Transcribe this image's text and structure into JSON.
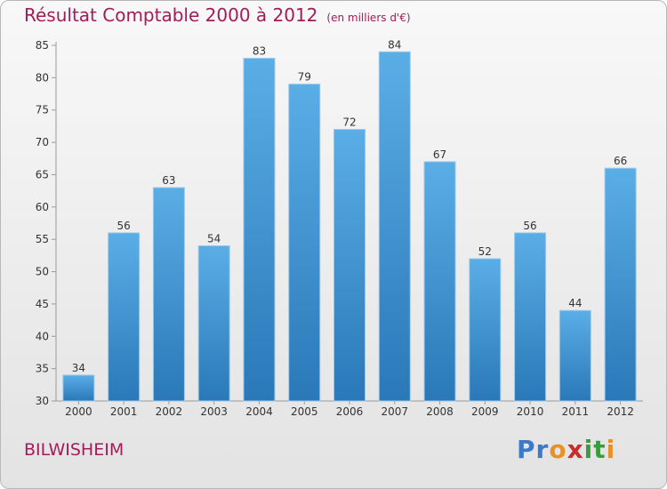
{
  "header": {
    "title": "Résultat Comptable 2000 à 2012",
    "subtitle": "(en milliers d'€)"
  },
  "footer": {
    "commune": "BILWISHEIM",
    "brand": "Proxiti",
    "brand_letters": [
      "P",
      "r",
      "o",
      "x",
      "i",
      "t",
      "i"
    ],
    "brand_colors": [
      "#3b79c9",
      "#3b79c9",
      "#e8912a",
      "#cc2b2b",
      "#3b9c3b",
      "#3b9c3b",
      "#e8912a"
    ]
  },
  "chart_data": {
    "type": "bar",
    "title": "Résultat Comptable 2000 à 2012",
    "subtitle": "(en milliers d'€)",
    "xlabel": "",
    "ylabel": "",
    "categories": [
      "2000",
      "2001",
      "2002",
      "2003",
      "2004",
      "2005",
      "2006",
      "2007",
      "2008",
      "2009",
      "2010",
      "2011",
      "2012"
    ],
    "values": [
      34,
      56,
      63,
      54,
      83,
      79,
      72,
      84,
      67,
      52,
      56,
      44,
      66
    ],
    "ylim": [
      30,
      85
    ],
    "yticks": [
      30,
      35,
      40,
      45,
      50,
      55,
      60,
      65,
      70,
      75,
      80,
      85
    ],
    "grid": false,
    "bar_color_top": "#5aaee6",
    "bar_color_bottom": "#2a78b8",
    "text_color": "#a31c5a"
  }
}
